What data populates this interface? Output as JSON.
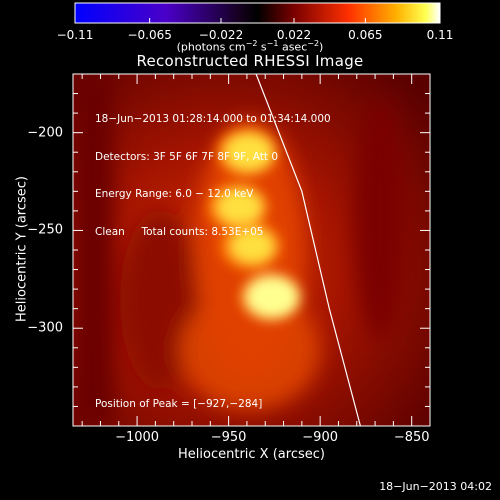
{
  "chart_data": {
    "type": "heatmap",
    "title": "Reconstructed RHESSI Image",
    "xlabel": "Heliocentric X (arcsec)",
    "ylabel": "Heliocentric Y (arcsec)",
    "xlim": [
      -1035,
      -840
    ],
    "ylim": [
      -350,
      -170
    ],
    "x_ticks": [
      -1000,
      -950,
      -900,
      -850
    ],
    "x_tick_labels": [
      "−1000",
      "−950",
      "−900",
      "−850"
    ],
    "y_ticks": [
      -200,
      -250,
      -300
    ],
    "y_tick_labels": [
      "−200",
      "−250",
      "−300"
    ],
    "colorbar": {
      "ticks": [
        -0.11,
        -0.065,
        -0.022,
        0.022,
        0.065,
        0.11
      ],
      "tick_labels": [
        "−0.11",
        "−0.065",
        "−0.022",
        "0.022",
        "0.065",
        "0.11"
      ],
      "units_text": "(photons cm",
      "units_sup1": "−2",
      "units_mid": " s",
      "units_sup2": "−1",
      "units_mid2": " asec",
      "units_sup3": "−2",
      "units_end": ")",
      "colors": [
        "#0000ff",
        "#000000",
        "#ff0000",
        "#ffff00",
        "#ffffff"
      ]
    },
    "info_lines": [
      "18−Jun−2013 01:28:14.000 to 01:34:14.000",
      "Detectors: 3F 5F 6F 7F 8F 9F, Att 0",
      "Energy Range: 6.0 − 12.0 keV",
      "Clean     Total counts: 8.53E+05"
    ],
    "peak_label": "Position of Peak = [−927,−284]",
    "peak": [
      -927,
      -284
    ],
    "sources": [
      {
        "x": -940,
        "y": -210,
        "intensity": 0.085
      },
      {
        "x": -945,
        "y": -238,
        "intensity": 0.07
      },
      {
        "x": -938,
        "y": -258,
        "intensity": 0.06
      },
      {
        "x": -927,
        "y": -284,
        "intensity": 0.11
      }
    ],
    "limb_points": [
      [
        -935,
        -170
      ],
      [
        -910,
        -230
      ],
      [
        -895,
        -290
      ],
      [
        -878,
        -350
      ]
    ]
  },
  "timestamp": "18−Jun−2013 04:02"
}
